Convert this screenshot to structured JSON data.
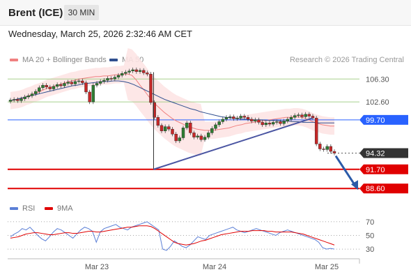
{
  "header": {
    "instrument": "Brent (ICE)",
    "timeframe": "30 MIN",
    "datetime": "Wednesday, March 25, 2026 2:32:46 AM CET"
  },
  "legend": {
    "ma20_label": "MA 20 + Bollinger Bands",
    "ma50_label": "MA 50",
    "copyright": "Research © 2026 Trading Central"
  },
  "rsi_legend": {
    "rsi_label": "RSI",
    "ma_label": "9MA"
  },
  "colors": {
    "ma20": "#f08080",
    "ma50": "#2f4f8f",
    "bollinger_fill": "#fde4e4",
    "support": "#e00000",
    "resistance": "#a8d08d",
    "pivot": "#2962ff",
    "last_price": "#333333",
    "trendline": "#4a55a2",
    "rsi": "#5b7fd6",
    "rsi_ma": "#e00000",
    "arrow": "#2b5aa8"
  },
  "chart_data": [
    {
      "type": "candlestick",
      "x_ticks": [
        "Mar 23",
        "Mar 24",
        "Mar 25"
      ],
      "ylim": [
        87.5,
        107.8
      ],
      "levels": [
        {
          "value": 106.3,
          "label": "106.30",
          "kind": "resistance"
        },
        {
          "value": 102.6,
          "label": "102.60",
          "kind": "resistance"
        },
        {
          "value": 99.7,
          "label": "99.70",
          "kind": "pivot"
        },
        {
          "value": 94.32,
          "label": "94.32",
          "kind": "last"
        },
        {
          "value": 91.7,
          "label": "91.70",
          "kind": "support"
        },
        {
          "value": 88.6,
          "label": "88.60",
          "kind": "support"
        }
      ],
      "close_series": [
        102.9,
        103.0,
        102.8,
        103.1,
        103.4,
        103.6,
        103.9,
        104.3,
        104.9,
        105.3,
        105.0,
        104.7,
        105.1,
        105.4,
        105.2,
        105.6,
        105.8,
        105.5,
        105.9,
        106.0,
        105.7,
        104.2,
        102.6,
        105.3,
        105.6,
        105.9,
        106.1,
        106.4,
        106.3,
        106.6,
        106.9,
        107.2,
        107.4,
        107.6,
        107.8,
        107.5,
        107.7,
        107.3,
        107.1,
        102.5,
        100.1,
        98.8,
        97.9,
        98.6,
        98.2,
        97.4,
        96.3,
        96.8,
        98.4,
        99.2,
        97.6,
        96.9,
        97.1,
        96.5,
        96.9,
        97.6,
        98.3,
        98.9,
        99.4,
        99.8,
        100.1,
        100.2,
        99.9,
        100.0,
        100.3,
        100.1,
        99.8,
        99.5,
        99.7,
        99.3,
        98.9,
        99.2,
        99.0,
        99.3,
        99.4,
        99.1,
        99.5,
        99.8,
        100.1,
        100.4,
        100.5,
        100.2,
        100.6,
        100.3,
        100.0,
        95.8,
        95.0,
        94.9,
        95.4,
        94.6,
        94.32
      ],
      "ma20_series": [
        102.8,
        102.9,
        103.0,
        103.2,
        103.5,
        103.7,
        104.0,
        104.2,
        104.5,
        104.8,
        105.0,
        105.2,
        105.4,
        105.6,
        105.8,
        106.0,
        106.1,
        106.3,
        106.4,
        106.5,
        106.6,
        106.7,
        106.7,
        106.8,
        106.8,
        106.9,
        107.0,
        107.0,
        107.1,
        107.1,
        106.9,
        106.2,
        105.3,
        104.5,
        103.6,
        102.8,
        102.1,
        101.5,
        100.9,
        100.4,
        99.9,
        99.5,
        99.2,
        98.9,
        98.6,
        98.4,
        98.2,
        98.1,
        98.0,
        98.0,
        98.0,
        98.1,
        98.2,
        98.3,
        98.4,
        98.6,
        98.8,
        98.9,
        99.1,
        99.2,
        99.3,
        99.4,
        99.5,
        99.6,
        99.7,
        99.8,
        99.9,
        100.0,
        100.1,
        100.1,
        100.2,
        100.2,
        100.1,
        99.9,
        99.6,
        99.3,
        99.1,
        98.9,
        98.8,
        98.7,
        98.7
      ],
      "ma50_series": [
        102.8,
        103.0,
        103.2,
        103.4,
        103.6,
        103.8,
        104.0,
        104.2,
        104.4,
        104.6,
        104.8,
        105.0,
        105.2,
        105.3,
        105.5,
        105.6,
        105.7,
        105.8,
        105.9,
        105.9,
        106.0,
        106.0,
        105.9,
        105.7,
        105.4,
        105.0,
        104.6,
        104.2,
        103.8,
        103.4,
        103.0,
        102.7,
        102.4,
        102.1,
        101.8,
        101.5,
        101.3,
        101.0,
        100.8,
        100.6,
        100.4,
        100.2,
        100.1,
        100.0,
        99.9,
        99.8,
        99.8,
        99.7,
        99.7,
        99.7,
        99.6,
        99.6,
        99.6,
        99.5,
        99.5,
        99.4,
        99.4,
        99.3,
        99.3,
        99.3,
        99.2,
        99.2,
        99.2,
        99.2
      ]
    },
    {
      "type": "line",
      "name": "RSI",
      "y_ticks": [
        70,
        50,
        30
      ],
      "ylim": [
        25,
        75
      ],
      "rsi_series": [
        48,
        52,
        55,
        60,
        58,
        62,
        56,
        50,
        45,
        42,
        48,
        55,
        60,
        58,
        54,
        50,
        46,
        52,
        58,
        62,
        60,
        56,
        40,
        55,
        60,
        62,
        64,
        66,
        62,
        60,
        58,
        62,
        64,
        66,
        68,
        70,
        66,
        62,
        58,
        30,
        28,
        34,
        42,
        38,
        34,
        32,
        36,
        42,
        48,
        46,
        44,
        50,
        52,
        54,
        56,
        58,
        60,
        62,
        58,
        56,
        54,
        56,
        58,
        60,
        58,
        56,
        54,
        52,
        50,
        54,
        56,
        58,
        56,
        54,
        52,
        50,
        48,
        46,
        44,
        40,
        32,
        30,
        31,
        30
      ],
      "ma_series": [
        46,
        47,
        48,
        50,
        52,
        53,
        54,
        54,
        53,
        52,
        51,
        51,
        52,
        53,
        54,
        54,
        53,
        53,
        54,
        55,
        56,
        56,
        55,
        55,
        56,
        57,
        58,
        59,
        60,
        61,
        62,
        62,
        63,
        64,
        64,
        64,
        63,
        60,
        56,
        52,
        48,
        44,
        40,
        38,
        37,
        36,
        37,
        38,
        40,
        42,
        43,
        45,
        47,
        49,
        51,
        52,
        53,
        54,
        55,
        56,
        56,
        56,
        57,
        57,
        57,
        57,
        56,
        56,
        55,
        55,
        55,
        55,
        55,
        54,
        53,
        52,
        50,
        48,
        46,
        44,
        42,
        40,
        38,
        36
      ]
    }
  ],
  "annotation": {
    "arrow_from": 94.32,
    "arrow_to": 88.6
  }
}
